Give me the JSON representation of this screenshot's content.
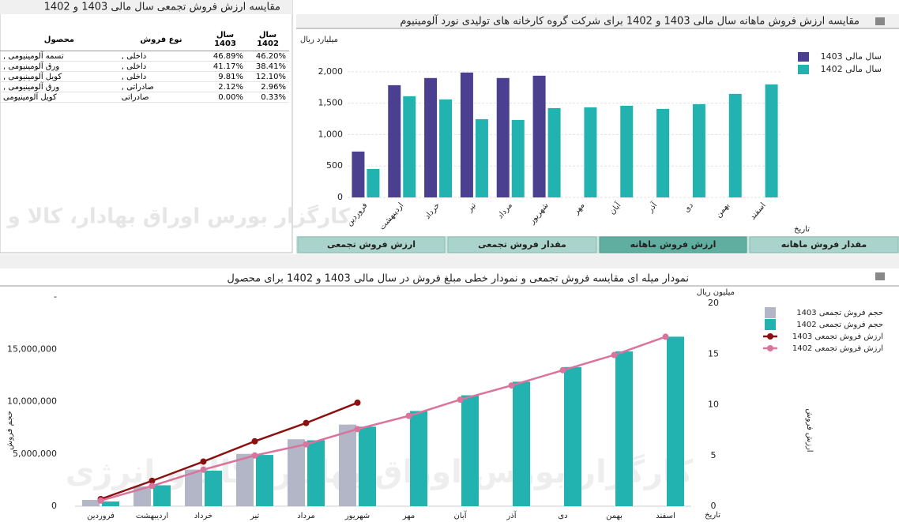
{
  "watermark": "کارگزار بورس اوراق بهادار، کالا و انرژی",
  "table": {
    "title": "مقایسه ارزش فروش تجمعی سال مالی 1403 و 1402",
    "headers": [
      "محصول",
      "نوع فروش",
      "سال 1403",
      "سال 1402"
    ],
    "rows": [
      [
        "تسمه آلومینیومی ,",
        "داخلی ,",
        "46.89%",
        "46.20%"
      ],
      [
        "ورق آلومینیومی ,",
        "داخلی ,",
        "41.17%",
        "38.41%"
      ],
      [
        "کویل آلومینیومی ,",
        "داخلی ,",
        "9.81%",
        "12.10%"
      ],
      [
        "ورق آلومینیومی ,",
        "صادراتی ,",
        "2.12%",
        "2.96%"
      ],
      [
        "کویل آلومینیومی",
        "صادراتی",
        "0.00%",
        "0.33%"
      ]
    ]
  },
  "tabs": [
    "ارزش فروش تجمعی",
    "مقدار فروش تجمعی",
    "ارزش فروش ماهانه",
    "مقدار فروش ماهانه"
  ],
  "chart_data": [
    {
      "type": "bar",
      "title": "مقایسه ارزش فروش ماهانه سال مالی 1403 و 1402 برای شرکت گروه کارخانه های تولیدی نورد آلومینیوم",
      "y_label": "میلیارد ریال",
      "x_label": "تاریخ",
      "categories": [
        "فروردین",
        "اردیبهشت",
        "خرداد",
        "تیر",
        "مرداد",
        "شهریور",
        "مهر",
        "آبان",
        "آذر",
        "دی",
        "بهمن",
        "اسفند"
      ],
      "series": [
        {
          "name": "سال مالی 1403",
          "color": "#4b3f8f",
          "values": [
            730,
            1786,
            1900,
            1987,
            1900,
            1937,
            null,
            null,
            null,
            null,
            null,
            null
          ]
        },
        {
          "name": "سال مالی 1402",
          "color": "#22b2b0",
          "values": [
            453,
            1610,
            1560,
            1245,
            1233,
            1421,
            1434,
            1459,
            1409,
            1484,
            1648,
            1799
          ]
        }
      ],
      "ylim": [
        0,
        2400
      ],
      "yticks": [
        0,
        500,
        {
          "value": 1000,
          "label": "1,000"
        },
        {
          "value": 1500,
          "label": "1,500"
        },
        {
          "value": 2000,
          "label": "2,000"
        }
      ],
      "grid": true,
      "legend": "top-right"
    },
    {
      "type": "combo",
      "title": "نمودار میله ای مقایسه فروش تجمعی و نمودار خطی مبلغ فروش در سال مالی 1403 و 1402 برای محصول",
      "y_label": "حجم فروش",
      "y2_label": "ارزش فروش",
      "y2_unit": "میلیون ریال",
      "x_label": "تاریخ",
      "categories": [
        "فروردین",
        "اردیبهشت",
        "خرداد",
        "تیر",
        "مرداد",
        "شهریور",
        "مهر",
        "آبان",
        "آذر",
        "دی",
        "بهمن",
        "اسفند"
      ],
      "series": [
        {
          "name": "حجم فروش تجمعی 1403",
          "type": "bar",
          "color": "#b3b6c6",
          "values": [
            600000,
            1900000,
            3500000,
            5000000,
            6400000,
            7800000,
            null,
            null,
            null,
            null,
            null,
            null
          ]
        },
        {
          "name": "حجم فروش تجمعی 1402",
          "type": "bar",
          "color": "#22b2b0",
          "values": [
            450000,
            2000000,
            3400000,
            4900000,
            6300000,
            7600000,
            9100000,
            10600000,
            11900000,
            13300000,
            14800000,
            16200000
          ]
        },
        {
          "name": "ارزش فروش تجمعی 1403",
          "type": "line",
          "axis": "y2",
          "color": "#8b1111",
          "values": [
            0.7,
            2.5,
            4.4,
            6.4,
            8.2,
            10.2,
            null,
            null,
            null,
            null,
            null,
            null
          ]
        },
        {
          "name": "ارزش فروش تجمعی 1402",
          "type": "line",
          "axis": "y2",
          "color": "#d9749c",
          "values": [
            0.55,
            2.0,
            3.6,
            5.0,
            6.1,
            7.6,
            8.9,
            10.5,
            11.9,
            13.4,
            14.9,
            16.7
          ]
        }
      ],
      "ylim": [
        0,
        20000000
      ],
      "yticks": [
        0,
        {
          "value": 5000000,
          "label": "5,000,000"
        },
        {
          "value": 10000000,
          "label": "10,000,000"
        },
        {
          "value": 15000000,
          "label": "15,000,000"
        },
        {
          "value": 20000000,
          "label": "-"
        }
      ],
      "y2lim": [
        0,
        20
      ],
      "y2ticks": [
        0,
        5,
        10,
        15,
        20
      ],
      "grid": false,
      "legend": "top-right"
    }
  ]
}
